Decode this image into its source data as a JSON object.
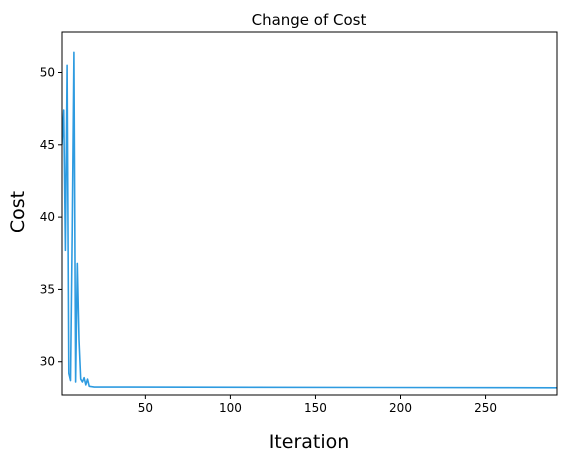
{
  "chart_data": {
    "type": "line",
    "title": "Change of Cost",
    "x_label": "Iteration",
    "y_label": "Cost",
    "x": [
      1,
      2,
      3,
      4,
      5,
      6,
      7,
      8,
      9,
      10,
      11,
      12,
      13,
      14,
      15,
      16,
      17,
      20,
      292
    ],
    "series": [
      {
        "name": "Cost",
        "color": "#2e9be0",
        "values": [
          45,
          47.4,
          37.7,
          50.5,
          29.2,
          28.7,
          39,
          51.4,
          28.6,
          36.8,
          31.5,
          28.8,
          28.6,
          28.9,
          28.4,
          28.8,
          28.3,
          28.25,
          28.2
        ]
      }
    ],
    "xlim": [
      1,
      292
    ],
    "xticks": [
      50,
      100,
      150,
      200,
      250
    ],
    "ylim": [
      27.7,
      52.8
    ],
    "yticks": [
      30,
      35,
      40,
      45,
      50
    ],
    "grid": false
  }
}
